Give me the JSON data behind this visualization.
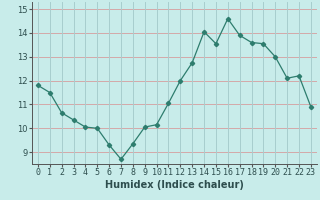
{
  "x": [
    0,
    1,
    2,
    3,
    4,
    5,
    6,
    7,
    8,
    9,
    10,
    11,
    12,
    13,
    14,
    15,
    16,
    17,
    18,
    19,
    20,
    21,
    22,
    23
  ],
  "y": [
    11.8,
    11.5,
    10.65,
    10.35,
    10.05,
    10.0,
    9.3,
    8.7,
    9.35,
    10.05,
    10.15,
    11.05,
    12.0,
    12.75,
    14.05,
    13.55,
    14.6,
    13.9,
    13.6,
    13.55,
    13.0,
    12.1,
    12.2,
    10.9
  ],
  "xlabel": "Humidex (Indice chaleur)",
  "ylim": [
    8.5,
    15.3
  ],
  "xlim": [
    -0.5,
    23.5
  ],
  "yticks": [
    9,
    10,
    11,
    12,
    13,
    14,
    15
  ],
  "xticks": [
    0,
    1,
    2,
    3,
    4,
    5,
    6,
    7,
    8,
    9,
    10,
    11,
    12,
    13,
    14,
    15,
    16,
    17,
    18,
    19,
    20,
    21,
    22,
    23
  ],
  "line_color": "#2e7d6e",
  "marker_color": "#2e7d6e",
  "bg_color": "#c8ecea",
  "grid_h_color": "#d4a8a8",
  "grid_v_color": "#a8cece",
  "axis_color": "#555555",
  "font_color": "#2e4e4e",
  "xlabel_fontsize": 7,
  "tick_fontsize": 6
}
